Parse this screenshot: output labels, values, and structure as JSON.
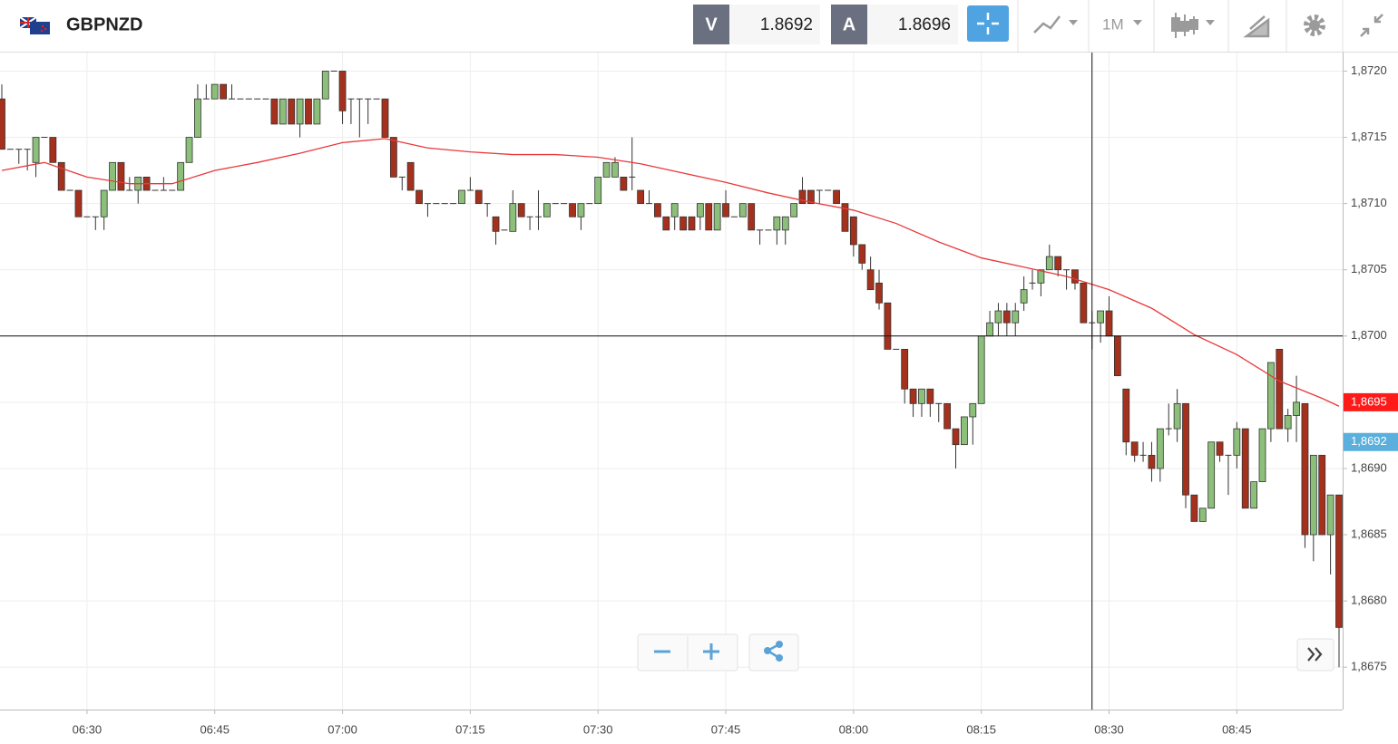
{
  "toolbar": {
    "symbol": "GBPNZD",
    "bid_label": "V",
    "bid": "1.8692",
    "ask_label": "A",
    "ask": "1.8696",
    "timeframe": "1M"
  },
  "chart_data": {
    "type": "candlestick",
    "x": [
      "06:20",
      "06:21",
      "06:22",
      "06:23",
      "06:24",
      "06:25",
      "06:26",
      "06:27",
      "06:28",
      "06:29",
      "06:30",
      "06:31",
      "06:32",
      "06:33",
      "06:34",
      "06:35",
      "06:36",
      "06:37",
      "06:38",
      "06:39",
      "06:40",
      "06:41",
      "06:42",
      "06:43",
      "06:44",
      "06:45",
      "06:46",
      "06:47",
      "06:48",
      "06:49",
      "06:50",
      "06:51",
      "06:52",
      "06:53",
      "06:54",
      "06:55",
      "06:56",
      "06:57",
      "06:58",
      "06:59",
      "07:00",
      "07:01",
      "07:02",
      "07:03",
      "07:04",
      "07:05",
      "07:06",
      "07:07",
      "07:08",
      "07:09",
      "07:10",
      "07:11",
      "07:12",
      "07:13",
      "07:14",
      "07:15",
      "07:16",
      "07:17",
      "07:18",
      "07:19",
      "07:20",
      "07:21",
      "07:22",
      "07:23",
      "07:24",
      "07:25",
      "07:26",
      "07:27",
      "07:28",
      "07:29",
      "07:30",
      "07:31",
      "07:32",
      "07:33",
      "07:34",
      "07:35",
      "07:36",
      "07:37",
      "07:38",
      "07:39",
      "07:40",
      "07:41",
      "07:42",
      "07:43",
      "07:44",
      "07:45",
      "07:46",
      "07:47",
      "07:48",
      "07:49",
      "07:50",
      "07:51",
      "07:52",
      "07:53",
      "07:54",
      "07:55",
      "07:56",
      "07:57",
      "07:58",
      "07:59",
      "08:00",
      "08:01",
      "08:02",
      "08:03",
      "08:04",
      "08:05",
      "08:06",
      "08:07",
      "08:08",
      "08:09",
      "08:10",
      "08:11",
      "08:12",
      "08:13",
      "08:14",
      "08:15",
      "08:16",
      "08:17",
      "08:18",
      "08:19",
      "08:20",
      "08:21",
      "08:22",
      "08:23",
      "08:24",
      "08:25",
      "08:26",
      "08:27",
      "08:28",
      "08:29",
      "08:30",
      "08:31",
      "08:32",
      "08:33",
      "08:34",
      "08:35",
      "08:36",
      "08:37",
      "08:38",
      "08:39",
      "08:40",
      "08:41",
      "08:42",
      "08:43",
      "08:44",
      "08:45",
      "08:46",
      "08:47",
      "08:48",
      "08:49",
      "08:50",
      "08:51",
      "08:52",
      "08:53",
      "08:54",
      "08:55",
      "08:56",
      "08:57"
    ],
    "ohlc": [
      [
        1.87179,
        1.8719,
        1.87141,
        1.87141
      ],
      [
        1.87141,
        1.87141,
        1.87141,
        1.87141
      ],
      [
        1.87141,
        1.87141,
        1.8713,
        1.87141
      ],
      [
        1.87141,
        1.87141,
        1.87125,
        1.87141
      ],
      [
        1.87131,
        1.8715,
        1.8712,
        1.8715
      ],
      [
        1.8715,
        1.8715,
        1.8715,
        1.8715
      ],
      [
        1.8715,
        1.8715,
        1.87131,
        1.87131
      ],
      [
        1.87131,
        1.87131,
        1.8711,
        1.8711
      ],
      [
        1.8711,
        1.8711,
        1.8711,
        1.8711
      ],
      [
        1.8711,
        1.8711,
        1.8709,
        1.8709
      ],
      [
        1.8709,
        1.8709,
        1.8709,
        1.8709
      ],
      [
        1.8709,
        1.8709,
        1.8708,
        1.8709
      ],
      [
        1.8709,
        1.8711,
        1.8708,
        1.8711
      ],
      [
        1.8711,
        1.87131,
        1.8711,
        1.87131
      ],
      [
        1.87131,
        1.87131,
        1.8711,
        1.8711
      ],
      [
        1.8711,
        1.8712,
        1.8711,
        1.8711
      ],
      [
        1.8711,
        1.8712,
        1.871,
        1.8712
      ],
      [
        1.8712,
        1.8712,
        1.8711,
        1.8711
      ],
      [
        1.8711,
        1.8711,
        1.8711,
        1.8711
      ],
      [
        1.8711,
        1.8712,
        1.8711,
        1.8711
      ],
      [
        1.8711,
        1.8711,
        1.8711,
        1.8711
      ],
      [
        1.8711,
        1.87131,
        1.8711,
        1.87131
      ],
      [
        1.87131,
        1.8715,
        1.87131,
        1.8715
      ],
      [
        1.8715,
        1.8719,
        1.8715,
        1.87179
      ],
      [
        1.87179,
        1.8719,
        1.87179,
        1.87179
      ],
      [
        1.87179,
        1.8719,
        1.87179,
        1.8719
      ],
      [
        1.8719,
        1.8719,
        1.87179,
        1.87179
      ],
      [
        1.87179,
        1.8719,
        1.87179,
        1.87179
      ],
      [
        1.87179,
        1.87179,
        1.87179,
        1.87179
      ],
      [
        1.87179,
        1.87179,
        1.87179,
        1.87179
      ],
      [
        1.87179,
        1.87179,
        1.87179,
        1.87179
      ],
      [
        1.87179,
        1.87179,
        1.87179,
        1.87179
      ],
      [
        1.87179,
        1.87179,
        1.8716,
        1.8716
      ],
      [
        1.8716,
        1.87179,
        1.8716,
        1.87179
      ],
      [
        1.87179,
        1.87179,
        1.8716,
        1.8716
      ],
      [
        1.8716,
        1.87179,
        1.8715,
        1.87179
      ],
      [
        1.87179,
        1.87179,
        1.8716,
        1.8716
      ],
      [
        1.8716,
        1.87179,
        1.8716,
        1.87179
      ],
      [
        1.87179,
        1.872,
        1.87179,
        1.872
      ],
      [
        1.872,
        1.872,
        1.872,
        1.872
      ],
      [
        1.872,
        1.872,
        1.8716,
        1.8717
      ],
      [
        1.87179,
        1.87179,
        1.8716,
        1.87179
      ],
      [
        1.87179,
        1.87179,
        1.8715,
        1.87179
      ],
      [
        1.87179,
        1.87179,
        1.8716,
        1.87179
      ],
      [
        1.87179,
        1.87179,
        1.87179,
        1.87179
      ],
      [
        1.87179,
        1.87179,
        1.8715,
        1.8715
      ],
      [
        1.8715,
        1.8715,
        1.8712,
        1.8712
      ],
      [
        1.8712,
        1.8712,
        1.8711,
        1.8712
      ],
      [
        1.87131,
        1.87131,
        1.8711,
        1.8711
      ],
      [
        1.8711,
        1.8711,
        1.871,
        1.871
      ],
      [
        1.871,
        1.871,
        1.8709,
        1.871
      ],
      [
        1.871,
        1.871,
        1.871,
        1.871
      ],
      [
        1.871,
        1.871,
        1.871,
        1.871
      ],
      [
        1.871,
        1.871,
        1.871,
        1.871
      ],
      [
        1.871,
        1.8711,
        1.871,
        1.8711
      ],
      [
        1.8711,
        1.8712,
        1.8711,
        1.8711
      ],
      [
        1.8711,
        1.8711,
        1.871,
        1.871
      ],
      [
        1.871,
        1.871,
        1.8709,
        1.871
      ],
      [
        1.8709,
        1.8709,
        1.87069,
        1.87079
      ],
      [
        1.8708,
        1.8708,
        1.8708,
        1.8708
      ],
      [
        1.87079,
        1.8711,
        1.87079,
        1.871
      ],
      [
        1.871,
        1.871,
        1.8709,
        1.8709
      ],
      [
        1.8709,
        1.8709,
        1.8708,
        1.8709
      ],
      [
        1.8709,
        1.8711,
        1.8708,
        1.8709
      ],
      [
        1.8709,
        1.871,
        1.8709,
        1.871
      ],
      [
        1.871,
        1.871,
        1.871,
        1.871
      ],
      [
        1.871,
        1.871,
        1.871,
        1.871
      ],
      [
        1.871,
        1.871,
        1.8709,
        1.8709
      ],
      [
        1.8709,
        1.871,
        1.8708,
        1.871
      ],
      [
        1.871,
        1.871,
        1.871,
        1.871
      ],
      [
        1.871,
        1.8712,
        1.871,
        1.8712
      ],
      [
        1.8712,
        1.87131,
        1.8712,
        1.87131
      ],
      [
        1.8712,
        1.87135,
        1.8712,
        1.87131
      ],
      [
        1.8712,
        1.8712,
        1.8711,
        1.8711
      ],
      [
        1.8712,
        1.8715,
        1.8711,
        1.8712
      ],
      [
        1.8711,
        1.8711,
        1.871,
        1.871
      ],
      [
        1.871,
        1.8711,
        1.871,
        1.871
      ],
      [
        1.871,
        1.871,
        1.8709,
        1.8709
      ],
      [
        1.8709,
        1.8709,
        1.8708,
        1.8708
      ],
      [
        1.8709,
        1.871,
        1.8708,
        1.871
      ],
      [
        1.8709,
        1.8709,
        1.8708,
        1.8708
      ],
      [
        1.8709,
        1.8709,
        1.8708,
        1.8708
      ],
      [
        1.8709,
        1.871,
        1.8708,
        1.871
      ],
      [
        1.871,
        1.871,
        1.8708,
        1.8708
      ],
      [
        1.8708,
        1.871,
        1.8708,
        1.871
      ],
      [
        1.871,
        1.8711,
        1.8709,
        1.8709
      ],
      [
        1.8709,
        1.8709,
        1.8709,
        1.8709
      ],
      [
        1.8709,
        1.871,
        1.8709,
        1.871
      ],
      [
        1.871,
        1.871,
        1.8708,
        1.8708
      ],
      [
        1.8708,
        1.8708,
        1.87069,
        1.8708
      ],
      [
        1.8708,
        1.8708,
        1.8708,
        1.8708
      ],
      [
        1.8708,
        1.8709,
        1.87069,
        1.8709
      ],
      [
        1.8708,
        1.8709,
        1.87069,
        1.8709
      ],
      [
        1.8709,
        1.871,
        1.8709,
        1.871
      ],
      [
        1.8711,
        1.8712,
        1.871,
        1.871
      ],
      [
        1.8711,
        1.8711,
        1.871,
        1.871
      ],
      [
        1.8711,
        1.8711,
        1.871,
        1.8711
      ],
      [
        1.8711,
        1.8711,
        1.8711,
        1.8711
      ],
      [
        1.8711,
        1.8711,
        1.871,
        1.871
      ],
      [
        1.871,
        1.871,
        1.87079,
        1.87079
      ],
      [
        1.8709,
        1.8709,
        1.8706,
        1.87069
      ],
      [
        1.87069,
        1.87069,
        1.8705,
        1.87055
      ],
      [
        1.8705,
        1.8706,
        1.87035,
        1.87035
      ],
      [
        1.8704,
        1.8705,
        1.8702,
        1.87025
      ],
      [
        1.87025,
        1.87025,
        1.8699,
        1.8699
      ],
      [
        1.8699,
        1.8699,
        1.8699,
        1.8699
      ],
      [
        1.8699,
        1.8699,
        1.86949,
        1.8696
      ],
      [
        1.8696,
        1.8696,
        1.86939,
        1.86949
      ],
      [
        1.86949,
        1.8696,
        1.86939,
        1.8696
      ],
      [
        1.8696,
        1.8696,
        1.86939,
        1.86949
      ],
      [
        1.86949,
        1.86949,
        1.86935,
        1.86949
      ],
      [
        1.86949,
        1.86949,
        1.8693,
        1.8693
      ],
      [
        1.8693,
        1.8693,
        1.869,
        1.86918
      ],
      [
        1.86918,
        1.86939,
        1.86918,
        1.86939
      ],
      [
        1.86939,
        1.86949,
        1.86918,
        1.86949
      ],
      [
        1.86949,
        1.87,
        1.86949,
        1.87
      ],
      [
        1.87,
        1.87019,
        1.87,
        1.8701
      ],
      [
        1.8701,
        1.87025,
        1.87,
        1.87019
      ],
      [
        1.87019,
        1.87025,
        1.87,
        1.8701
      ],
      [
        1.8701,
        1.87025,
        1.87,
        1.87019
      ],
      [
        1.87025,
        1.87045,
        1.87019,
        1.87035
      ],
      [
        1.8704,
        1.8705,
        1.87035,
        1.8704
      ],
      [
        1.8704,
        1.8705,
        1.8703,
        1.8705
      ],
      [
        1.8705,
        1.87069,
        1.8705,
        1.8706
      ],
      [
        1.8706,
        1.8706,
        1.87045,
        1.8705
      ],
      [
        1.8705,
        1.8705,
        1.87035,
        1.8705
      ],
      [
        1.8705,
        1.8705,
        1.87035,
        1.8704
      ],
      [
        1.8704,
        1.8704,
        1.8701,
        1.8701
      ],
      [
        1.8701,
        1.87019,
        1.8699,
        1.8701
      ],
      [
        1.8701,
        1.87019,
        1.86995,
        1.87019
      ],
      [
        1.87019,
        1.8703,
        1.87,
        1.87
      ],
      [
        1.87,
        1.87,
        1.8697,
        1.8697
      ],
      [
        1.8696,
        1.8696,
        1.8691,
        1.8692
      ],
      [
        1.8692,
        1.8692,
        1.86905,
        1.8691
      ],
      [
        1.8691,
        1.8692,
        1.86905,
        1.8691
      ],
      [
        1.8691,
        1.8692,
        1.8689,
        1.869
      ],
      [
        1.869,
        1.8693,
        1.8689,
        1.8693
      ],
      [
        1.8693,
        1.86949,
        1.86925,
        1.8693
      ],
      [
        1.8693,
        1.8696,
        1.8692,
        1.86949
      ],
      [
        1.86949,
        1.86949,
        1.8687,
        1.8688
      ],
      [
        1.8688,
        1.8688,
        1.8686,
        1.8686
      ],
      [
        1.8686,
        1.8687,
        1.8686,
        1.8687
      ],
      [
        1.8687,
        1.8692,
        1.8687,
        1.8692
      ],
      [
        1.8692,
        1.8692,
        1.86905,
        1.8691
      ],
      [
        1.8691,
        1.8691,
        1.8688,
        1.8691
      ],
      [
        1.8691,
        1.86935,
        1.869,
        1.8693
      ],
      [
        1.8693,
        1.8693,
        1.8687,
        1.8687
      ],
      [
        1.8687,
        1.8689,
        1.8687,
        1.8689
      ],
      [
        1.8689,
        1.8693,
        1.8689,
        1.8693
      ],
      [
        1.8693,
        1.8698,
        1.8692,
        1.8698
      ],
      [
        1.8699,
        1.8699,
        1.8693,
        1.8693
      ],
      [
        1.8693,
        1.86945,
        1.8692,
        1.8694
      ],
      [
        1.8694,
        1.8697,
        1.8692,
        1.8695
      ],
      [
        1.86949,
        1.86949,
        1.8684,
        1.8685
      ],
      [
        1.8685,
        1.8691,
        1.8683,
        1.8691
      ],
      [
        1.8691,
        1.8691,
        1.8685,
        1.8685
      ],
      [
        1.8685,
        1.8688,
        1.8682,
        1.8688
      ],
      [
        1.8688,
        1.8688,
        1.8675,
        1.8678
      ]
    ],
    "up_color": "#8cbf7a",
    "down_color": "#a5311d",
    "ma": {
      "color": "#e8393a",
      "x": [
        "06:20",
        "06:25",
        "06:30",
        "06:35",
        "06:40",
        "06:45",
        "06:50",
        "06:55",
        "07:00",
        "07:05",
        "07:10",
        "07:15",
        "07:20",
        "07:25",
        "07:30",
        "07:35",
        "07:40",
        "07:45",
        "07:50",
        "07:55",
        "08:00",
        "08:05",
        "08:10",
        "08:15",
        "08:20",
        "08:25",
        "08:30",
        "08:35",
        "08:40",
        "08:45",
        "08:50",
        "08:55",
        "08:57"
      ],
      "values": [
        1.87125,
        1.87131,
        1.8712,
        1.87115,
        1.87115,
        1.87125,
        1.87131,
        1.87138,
        1.87146,
        1.87149,
        1.87142,
        1.87139,
        1.87137,
        1.87137,
        1.87135,
        1.8713,
        1.87123,
        1.87116,
        1.87108,
        1.87101,
        1.87095,
        1.87085,
        1.87071,
        1.87059,
        1.87052,
        1.87045,
        1.87035,
        1.87021,
        1.87001,
        1.86986,
        1.86966,
        1.86953,
        1.86947
      ]
    },
    "xlim": [
      "06:20",
      "08:57"
    ],
    "xticks": [
      "06:30",
      "06:45",
      "07:00",
      "07:15",
      "07:30",
      "07:45",
      "08:00",
      "08:15",
      "08:30",
      "08:45"
    ],
    "ylim": [
      1.86718,
      1.87214
    ],
    "yticks": [
      {
        "value": 1.8675,
        "label": "1,8675"
      },
      {
        "value": 1.868,
        "label": "1,8680"
      },
      {
        "value": 1.8685,
        "label": "1,8685"
      },
      {
        "value": 1.869,
        "label": "1,8690"
      },
      {
        "value": 1.8695,
        "label": "1,8695"
      },
      {
        "value": 1.87,
        "label": "1,8700"
      },
      {
        "value": 1.8705,
        "label": "1,8705"
      },
      {
        "value": 1.871,
        "label": "1,8710"
      },
      {
        "value": 1.8715,
        "label": "1,8715"
      },
      {
        "value": 1.872,
        "label": "1,8720"
      }
    ],
    "grid": true,
    "price_labels": [
      {
        "value": 1.8695,
        "label": "1,8695",
        "color": "#ff1a1a"
      },
      {
        "value": 1.8692,
        "label": "1,8692",
        "color": "#5aafdc"
      }
    ],
    "crosshair": {
      "x": "08:28",
      "y": 1.87
    }
  }
}
